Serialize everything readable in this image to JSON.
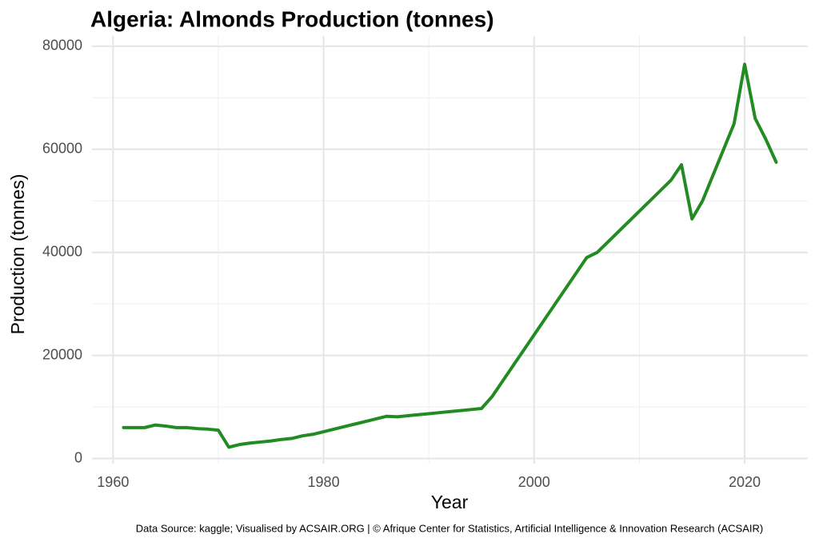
{
  "chart_data": {
    "type": "line",
    "title": "Algeria: Almonds Production (tonnes)",
    "x_label": "Year",
    "y_label": "Production (tonnes)",
    "caption": "Data Source: kaggle; Visualised by ACSAIR.ORG | © Afrique Center for Statistics, Artificial Intelligence & Innovation Research (ACSAIR)",
    "x": [
      1961,
      1962,
      1963,
      1964,
      1965,
      1966,
      1967,
      1968,
      1969,
      1970,
      1971,
      1972,
      1973,
      1974,
      1975,
      1976,
      1977,
      1978,
      1979,
      1980,
      1981,
      1982,
      1983,
      1984,
      1985,
      1986,
      1987,
      1988,
      1989,
      1990,
      1991,
      1992,
      1993,
      1994,
      1995,
      1996,
      1997,
      1998,
      1999,
      2000,
      2001,
      2002,
      2003,
      2004,
      2005,
      2006,
      2007,
      2008,
      2009,
      2010,
      2011,
      2012,
      2013,
      2014,
      2015,
      2016,
      2017,
      2018,
      2019,
      2020,
      2021,
      2022,
      2023
    ],
    "values": [
      6000,
      6000,
      6000,
      6500,
      6300,
      6000,
      6000,
      5800,
      5700,
      5500,
      2200,
      2700,
      3000,
      3200,
      3400,
      3700,
      3900,
      4400,
      4700,
      5200,
      5700,
      6200,
      6700,
      7200,
      7700,
      8200,
      8100,
      8300,
      8500,
      8700,
      8900,
      9100,
      9300,
      9500,
      9700,
      12000,
      15000,
      18000,
      21000,
      24000,
      27000,
      30000,
      33000,
      36000,
      39000,
      40000,
      42000,
      44000,
      46000,
      48000,
      50000,
      52000,
      54000,
      57000,
      46500,
      50000,
      55000,
      60000,
      65000,
      76500,
      66000,
      62000,
      57500
    ],
    "color": "#228b22",
    "xlim": [
      1958,
      2026
    ],
    "ylim": [
      -1000,
      82000
    ],
    "xticks": [
      1960,
      1980,
      2000,
      2020
    ],
    "yticks": [
      0,
      20000,
      40000,
      60000,
      80000
    ],
    "grid": true
  }
}
